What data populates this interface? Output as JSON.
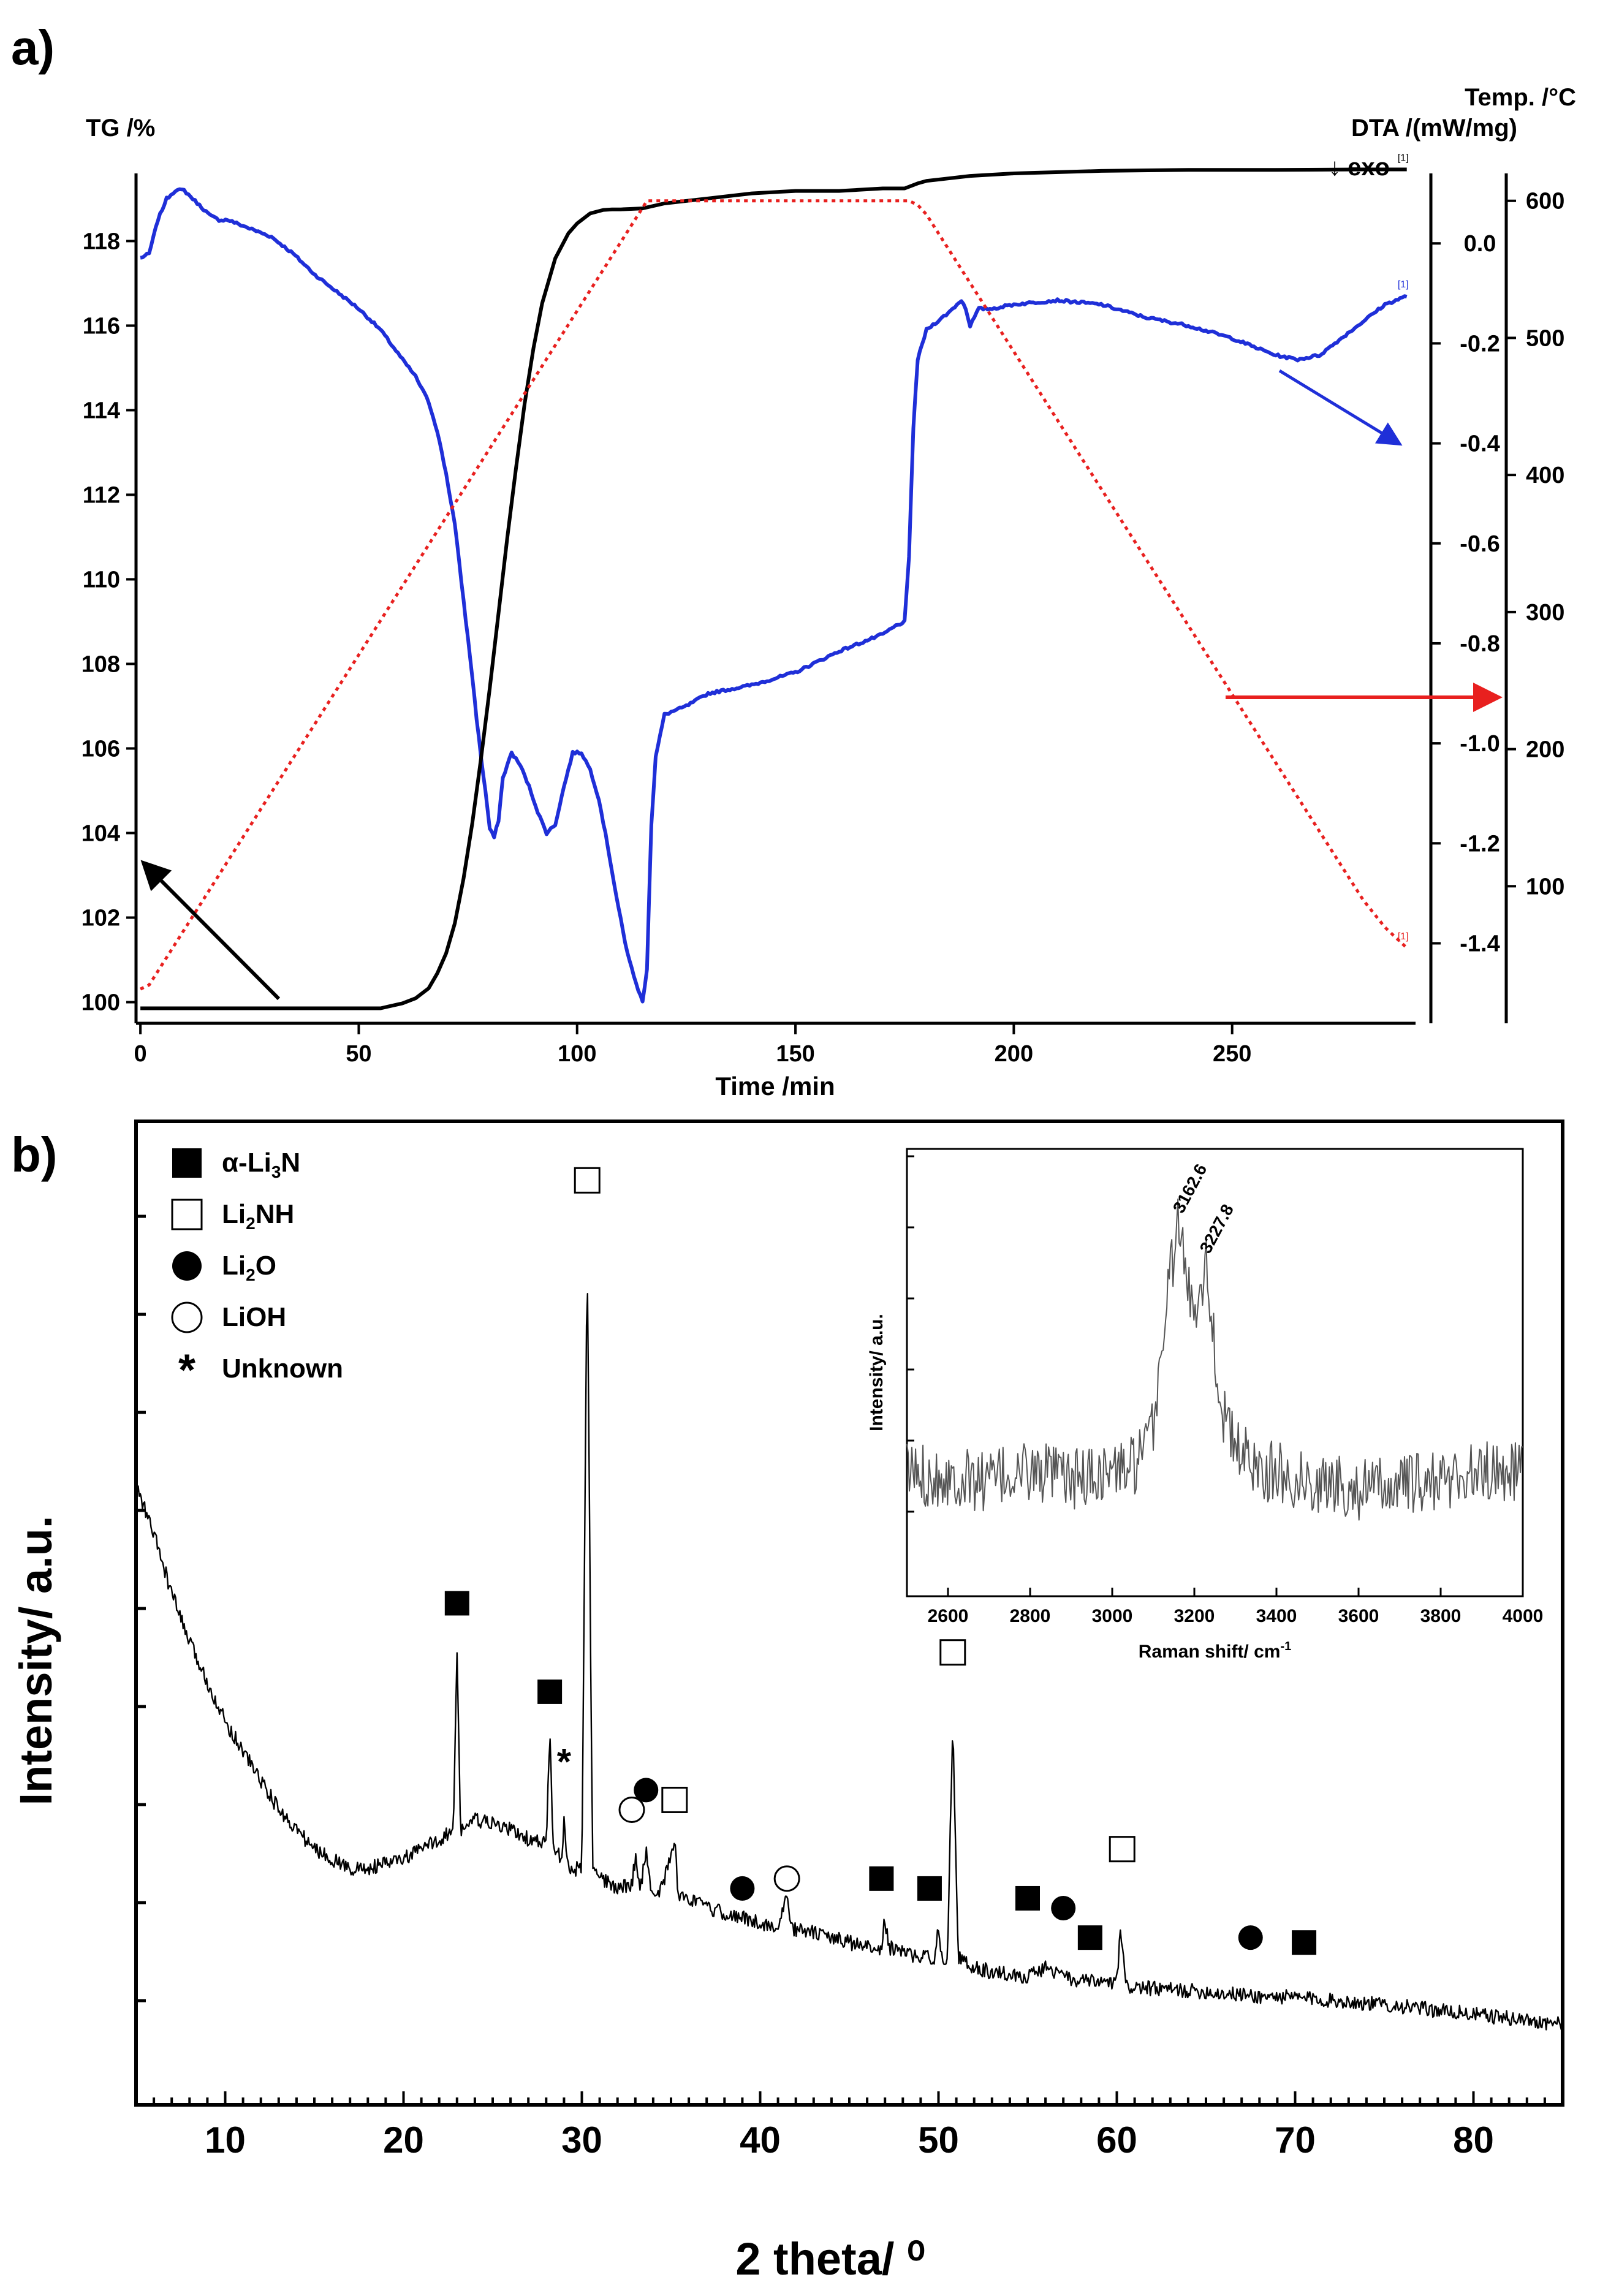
{
  "panel_a": {
    "label": "a)",
    "chart_data": {
      "type": "line",
      "xlabel": "Time /min",
      "xlim": [
        -1,
        292
      ],
      "xticks": [
        0,
        50,
        100,
        150,
        200,
        250
      ],
      "axes": {
        "tg": {
          "label": "TG /%",
          "lim": [
            99.5,
            119.6
          ],
          "ticks": [
            100,
            102,
            104,
            106,
            108,
            110,
            112,
            114,
            116,
            118
          ]
        },
        "dta": {
          "label": "DTA /(mW/mg)",
          "exo_label": "↓ exo",
          "lim": [
            -1.56,
            0.14
          ],
          "ticks": [
            0.0,
            -0.2,
            -0.4,
            -0.6,
            -0.8,
            -1.0,
            -1.2,
            -1.4
          ],
          "tick_labels": [
            "0.0",
            "-0.2",
            "-0.4",
            "-0.6",
            "-0.8",
            "-1.0",
            "-1.2",
            "-1.4"
          ]
        },
        "temp": {
          "label": "Temp. /°C",
          "lim": [
            0,
            620
          ],
          "ticks": [
            100,
            200,
            300,
            400,
            500,
            600
          ]
        }
      },
      "series": [
        {
          "name": "TG",
          "axis": "tg",
          "color": "#1f2fd8",
          "style": "solid",
          "end_tag": "[1]",
          "x": [
            0,
            2,
            4,
            6,
            8,
            10,
            12,
            14,
            16,
            18,
            20,
            25,
            30,
            35,
            40,
            45,
            50,
            55,
            60,
            63,
            66,
            68,
            70,
            72,
            74,
            76,
            77,
            78,
            79,
            80,
            81,
            82,
            83,
            85,
            87,
            89,
            91,
            93,
            95,
            97,
            99,
            101,
            103,
            105,
            107,
            109,
            111,
            113,
            114,
            115,
            116,
            117,
            118,
            120,
            125,
            130,
            140,
            150,
            160,
            165,
            170,
            173,
            175,
            176,
            177,
            178,
            180,
            185,
            188,
            189,
            190,
            192,
            195,
            200,
            210,
            220,
            230,
            240,
            250,
            260,
            265,
            270,
            275,
            280,
            285,
            290
          ],
          "y": [
            117.6,
            117.7,
            118.5,
            119.0,
            119.2,
            119.2,
            119.0,
            118.8,
            118.6,
            118.5,
            118.5,
            118.3,
            118.1,
            117.7,
            117.2,
            116.8,
            116.4,
            115.9,
            115.2,
            114.8,
            114.2,
            113.5,
            112.5,
            111.3,
            109.5,
            107.7,
            106.7,
            105.8,
            105.0,
            104.1,
            103.9,
            104.3,
            105.3,
            105.9,
            105.6,
            105.1,
            104.5,
            104.0,
            104.2,
            105.1,
            105.9,
            105.9,
            105.5,
            104.8,
            103.7,
            102.5,
            101.4,
            100.6,
            100.3,
            100.0,
            100.8,
            104.2,
            105.8,
            106.8,
            107.0,
            107.3,
            107.5,
            107.8,
            108.3,
            108.5,
            108.7,
            108.9,
            109.0,
            110.5,
            113.6,
            115.2,
            115.9,
            116.3,
            116.6,
            116.4,
            116.0,
            116.4,
            116.4,
            116.5,
            116.6,
            116.5,
            116.2,
            116.0,
            115.7,
            115.3,
            115.2,
            115.3,
            115.7,
            116.1,
            116.5,
            116.7
          ]
        },
        {
          "name": "DTA",
          "axis": "dta",
          "color": "#000000",
          "style": "solid",
          "end_tag": "[1]",
          "x": [
            0,
            10,
            20,
            30,
            40,
            50,
            55,
            60,
            63,
            66,
            68,
            70,
            72,
            74,
            76,
            78,
            80,
            82,
            84,
            86,
            88,
            90,
            92,
            95,
            98,
            100,
            103,
            106,
            108,
            110,
            115,
            120,
            130,
            140,
            150,
            160,
            170,
            175,
            178,
            180,
            185,
            190,
            200,
            220,
            240,
            260,
            280,
            290
          ],
          "y": [
            -1.53,
            -1.53,
            -1.53,
            -1.53,
            -1.53,
            -1.53,
            -1.53,
            -1.52,
            -1.51,
            -1.49,
            -1.46,
            -1.42,
            -1.36,
            -1.27,
            -1.16,
            -1.03,
            -0.89,
            -0.74,
            -0.59,
            -0.45,
            -0.32,
            -0.21,
            -0.12,
            -0.03,
            0.02,
            0.04,
            0.06,
            0.067,
            0.068,
            0.068,
            0.07,
            0.08,
            0.09,
            0.1,
            0.105,
            0.105,
            0.11,
            0.11,
            0.12,
            0.125,
            0.13,
            0.135,
            0.14,
            0.145,
            0.147,
            0.147,
            0.148,
            0.148
          ]
        },
        {
          "name": "Temp",
          "axis": "temp",
          "color": "#e8201f",
          "style": "dotted",
          "end_tag": "[1]",
          "x": [
            0,
            2,
            116,
            117,
            176,
            178,
            180,
            200,
            220,
            240,
            260,
            270,
            280,
            285,
            290
          ],
          "y": [
            25,
            28,
            600,
            600,
            600,
            597,
            590,
            490,
            390,
            290,
            190,
            140,
            90,
            70,
            55
          ]
        }
      ]
    },
    "arrows": [
      {
        "name": "tg-axis-arrow",
        "target": "TG",
        "direction": "left",
        "color": "#000000"
      },
      {
        "name": "dta-axis-arrow",
        "target": "DTA",
        "direction": "right",
        "color": "#1f2fd8"
      },
      {
        "name": "temp-axis-arrow",
        "target": "Temp",
        "direction": "right",
        "color": "#e8201f"
      }
    ]
  },
  "panel_b": {
    "label": "b)",
    "chart_data": {
      "type": "line",
      "xlabel": "2 theta/ ⁰",
      "ylabel": "Intensity/ a.u.",
      "xlim": [
        5,
        85
      ],
      "ylim": [
        -1,
        99
      ],
      "xticks": [
        10,
        20,
        30,
        40,
        50,
        60,
        70,
        80
      ],
      "series": [
        {
          "name": "XRD pattern",
          "color": "#000000",
          "x": [
            5,
            6,
            7,
            8,
            9,
            10,
            11,
            12,
            13,
            14,
            15,
            16,
            17,
            18,
            19,
            20,
            21,
            22,
            22.8,
            23.0,
            23.2,
            24,
            25,
            26,
            27,
            28.0,
            28.2,
            28.4,
            28.9,
            29.0,
            29.2,
            30.0,
            30.3,
            30.6,
            31,
            32,
            32.8,
            33.0,
            33.3,
            33.6,
            33.9,
            34.5,
            35.2,
            35.4,
            36,
            37,
            38,
            39,
            40,
            41,
            41.5,
            41.8,
            42,
            43,
            44,
            45,
            46,
            46.8,
            47.0,
            47.2,
            48,
            49,
            49.8,
            50.0,
            50.2,
            50.5,
            50.8,
            51.1,
            51.5,
            52,
            53,
            54,
            55,
            56,
            56.5,
            57,
            58,
            58.5,
            59,
            60,
            60.2,
            60.5,
            61,
            62,
            63,
            64,
            65,
            66,
            67,
            68,
            69,
            70,
            71,
            72,
            73,
            74,
            75,
            76,
            77,
            78,
            79,
            80,
            81,
            82,
            83,
            84,
            85
          ],
          "y": [
            62,
            57,
            51,
            46,
            42,
            38,
            35,
            32,
            29,
            27,
            25,
            24,
            23,
            23,
            23.5,
            24,
            25,
            26,
            27,
            45,
            27,
            28,
            27.5,
            27,
            26,
            25.5,
            37,
            25,
            24,
            28,
            23,
            23,
            86,
            23,
            22,
            21,
            21.5,
            24,
            21,
            25,
            20.5,
            21,
            26,
            20.5,
            20,
            19,
            18.5,
            18,
            17.5,
            17,
            20,
            17,
            16.8,
            16.5,
            16,
            15.5,
            15,
            15,
            18,
            15,
            14.5,
            14,
            14,
            17,
            14,
            14,
            38,
            14,
            13.5,
            13,
            12.5,
            12.3,
            12,
            13,
            12.5,
            12,
            11.5,
            11.5,
            11.5,
            11.3,
            17,
            11,
            11,
            10.8,
            10.7,
            10.6,
            10.5,
            10.3,
            10.2,
            10,
            10,
            9.9,
            9.8,
            9.6,
            9.5,
            9.3,
            9.2,
            9,
            8.8,
            8.6,
            8.4,
            8.2,
            8,
            7.8,
            7.6,
            7.4,
            7.2
          ]
        }
      ],
      "legend": [
        {
          "symbol": "filled-square",
          "label": "α-Li",
          "sub": "3",
          "tail": "N"
        },
        {
          "symbol": "open-square",
          "label": "Li",
          "sub": "2",
          "tail": "NH"
        },
        {
          "symbol": "filled-circle",
          "label": "Li",
          "sub": "2",
          "tail": "O"
        },
        {
          "symbol": "open-circle",
          "label": "LiOH",
          "sub": "",
          "tail": ""
        },
        {
          "symbol": "asterisk",
          "label": "Unknown",
          "sub": "",
          "tail": ""
        }
      ],
      "peak_markers": [
        {
          "x": 23.0,
          "y": 50,
          "symbol": "filled-square"
        },
        {
          "x": 28.2,
          "y": 41,
          "symbol": "filled-square"
        },
        {
          "x": 29.0,
          "y": 34,
          "symbol": "asterisk"
        },
        {
          "x": 30.3,
          "y": 93,
          "symbol": "open-square"
        },
        {
          "x": 32.8,
          "y": 29,
          "symbol": "open-circle"
        },
        {
          "x": 33.6,
          "y": 31,
          "symbol": "filled-circle"
        },
        {
          "x": 35.2,
          "y": 30,
          "symbol": "open-square"
        },
        {
          "x": 39.0,
          "y": 21,
          "symbol": "filled-circle"
        },
        {
          "x": 41.5,
          "y": 22,
          "symbol": "open-circle"
        },
        {
          "x": 46.8,
          "y": 22,
          "symbol": "filled-square"
        },
        {
          "x": 49.5,
          "y": 21,
          "symbol": "filled-square"
        },
        {
          "x": 50.8,
          "y": 45,
          "symbol": "open-square"
        },
        {
          "x": 55.0,
          "y": 20,
          "symbol": "filled-square"
        },
        {
          "x": 57.0,
          "y": 19,
          "symbol": "filled-circle"
        },
        {
          "x": 58.5,
          "y": 16,
          "symbol": "filled-square"
        },
        {
          "x": 60.3,
          "y": 25,
          "symbol": "open-square"
        },
        {
          "x": 67.5,
          "y": 16,
          "symbol": "filled-circle"
        },
        {
          "x": 70.5,
          "y": 15.5,
          "symbol": "filled-square"
        }
      ]
    },
    "inset": {
      "chart_data": {
        "type": "line",
        "xlabel": "Raman shift/ cm",
        "xlabel_sup": "-1",
        "ylabel": "Intensity/ a.u.",
        "xlim": [
          2500,
          4000
        ],
        "ylim": [
          0,
          100
        ],
        "xticks": [
          2600,
          2800,
          3000,
          3200,
          3400,
          3600,
          3800,
          4000
        ],
        "series": [
          {
            "name": "Raman spectrum",
            "color": "#555555",
            "x": [
              2500,
              2550,
              2600,
              2650,
              2700,
              2750,
              2800,
              2850,
              2900,
              2950,
              3000,
              3050,
              3080,
              3100,
              3120,
              3140,
              3162.6,
              3180,
              3200,
              3215,
              3227.8,
              3245,
              3260,
              3280,
              3300,
              3340,
              3380,
              3420,
              3460,
              3500,
              3550,
              3600,
              3650,
              3700,
              3750,
              3800,
              3850,
              3900,
              3950,
              4000
            ],
            "y": [
              28,
              27,
              27,
              26,
              26,
              27,
              28,
              27,
              26,
              27,
              28,
              29,
              32,
              38,
              55,
              72,
              84,
              70,
              65,
              70,
              75,
              60,
              45,
              38,
              33,
              30,
              28,
              27,
              26,
              25,
              25,
              24,
              24,
              25,
              25,
              26,
              27,
              28,
              28,
              28
            ],
            "noise": 7
          }
        ],
        "peak_labels": [
          {
            "x": 3162.6,
            "y": 84,
            "text": "3162.6"
          },
          {
            "x": 3227.8,
            "y": 75,
            "text": "3227.8"
          }
        ]
      }
    }
  }
}
